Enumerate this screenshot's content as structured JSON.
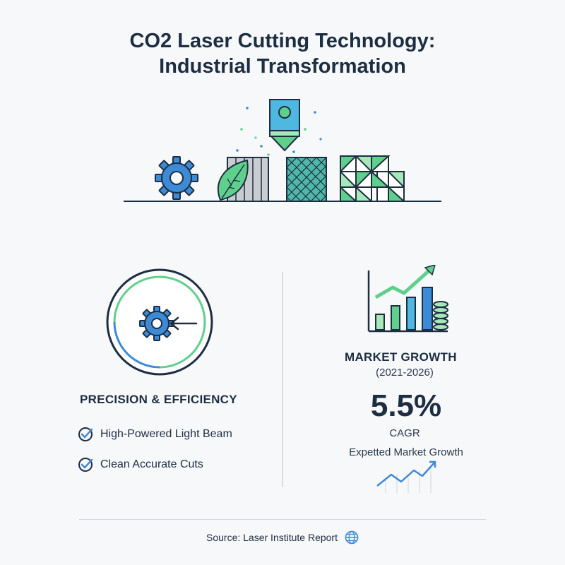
{
  "header": {
    "title_line1": "CO2 Laser Cutting Technology:",
    "title_line2": "Industrial Transformation"
  },
  "left": {
    "heading": "PRECISION & EFFICIENCY",
    "features": [
      "High-Powered Light Beam",
      "Clean Accurate Cuts"
    ]
  },
  "right": {
    "heading": "MARKET GROWTH",
    "period": "(2021-2026)",
    "value": "5.5%",
    "unit": "CAGR",
    "sub_label": "Expetted Market Growth"
  },
  "footer": {
    "source": "Source: Laser Institute Report"
  },
  "colors": {
    "navy": "#1d2e42",
    "blue": "#3d8ad6",
    "green": "#5fcf8c",
    "light_green": "#a7e8b8",
    "teal": "#4fb8a8",
    "gray": "#b9bec5"
  },
  "icons": [
    "gear-icon",
    "leaf-icon",
    "laser-head-icon",
    "lattice-block-icon",
    "triangle-grid-icon",
    "target-gear-icon",
    "check-icon",
    "bar-growth-icon",
    "coin-stack-icon",
    "trend-line-icon",
    "globe-icon"
  ]
}
